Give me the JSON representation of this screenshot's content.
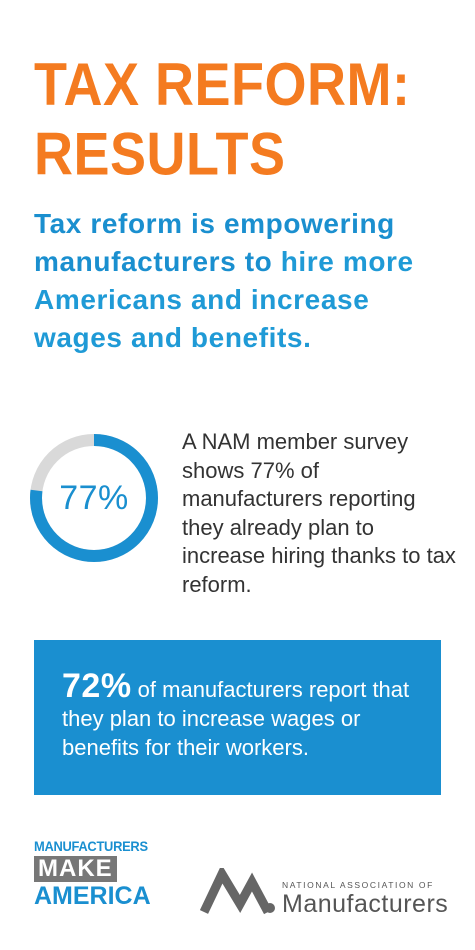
{
  "title": {
    "line1": "TAX REFORM:",
    "line2": "RESULTS"
  },
  "lead": {
    "part1": "Tax reform is empowering manufacturers to ",
    "part2": "hire more Americans and increase wages and benefits."
  },
  "hiring_stat": {
    "percent_label": "77%",
    "fraction": 0.77,
    "text": "A NAM member survey shows 77% of manufacturers reporting they already plan to increase hiring thanks to tax reform."
  },
  "wages_stat": {
    "percent_label": "72%",
    "text": " of manufacturers report that they plan to increase wages or benefits for their workers."
  },
  "logos": {
    "mma_line1": "MANUFACTURERS",
    "mma_line2": "MAKE",
    "mma_line3": "AMERICA",
    "nam_small": "NATIONAL ASSOCIATION OF",
    "nam_big": "Manufacturers"
  },
  "colors": {
    "orange": "#f47b20",
    "blue": "#1a8fd0",
    "ring_track": "#d9d9d9",
    "gray_text": "#333333"
  }
}
